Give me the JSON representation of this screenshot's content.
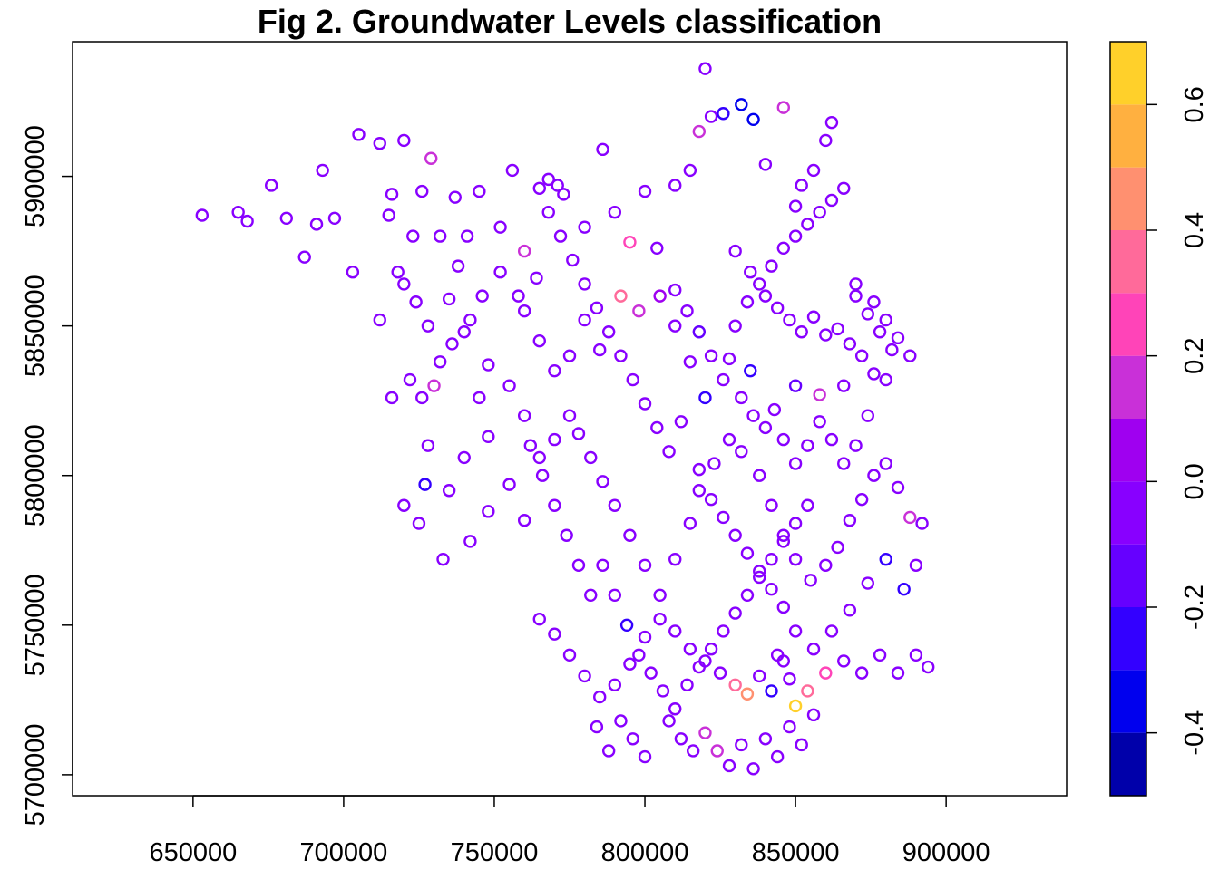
{
  "chart_data": {
    "type": "scatter",
    "title": "Fig 2.  Groundwater Levels classification",
    "xlabel": "",
    "ylabel": "",
    "xlim": [
      610000,
      940000
    ],
    "ylim": [
      5693000,
      5945000
    ],
    "x_ticks": [
      650000,
      700000,
      750000,
      800000,
      850000,
      900000
    ],
    "x_tick_labels": [
      "650000",
      "700000",
      "750000",
      "800000",
      "850000",
      "900000"
    ],
    "y_ticks": [
      5700000,
      5750000,
      5800000,
      5850000,
      5900000
    ],
    "y_tick_labels": [
      "5700000",
      "5750000",
      "5800000",
      "5850000",
      "5900000"
    ],
    "marker": "open-circle",
    "grid": false,
    "legend": "colorbar-right",
    "colorbar": {
      "range": [
        -0.5,
        0.7
      ],
      "breaks": [
        -0.5,
        -0.4,
        -0.3,
        -0.2,
        -0.1,
        0.0,
        0.1,
        0.2,
        0.3,
        0.4,
        0.5,
        0.6,
        0.7
      ],
      "colors": [
        "#0000aa",
        "#0000ee",
        "#3300ff",
        "#6600ff",
        "#8800ff",
        "#9f00f0",
        "#c930d8",
        "#ff44b8",
        "#ff6a9a",
        "#ff9070",
        "#ffb040",
        "#ffd02a",
        "#ffff10"
      ],
      "ticks": [
        -0.4,
        -0.2,
        0.0,
        0.2,
        0.4,
        0.6
      ],
      "tick_labels": [
        "-0.4",
        "-0.2",
        "0.0",
        "0.2",
        "0.4",
        "0.6"
      ]
    },
    "points": [
      [
        653000,
        5887000,
        -0.05
      ],
      [
        665000,
        5888000,
        -0.05
      ],
      [
        668000,
        5885000,
        -0.05
      ],
      [
        676000,
        5897000,
        -0.05
      ],
      [
        681000,
        5886000,
        -0.05
      ],
      [
        687000,
        5873000,
        -0.05
      ],
      [
        693000,
        5902000,
        -0.05
      ],
      [
        691000,
        5884000,
        -0.05
      ],
      [
        697000,
        5886000,
        -0.05
      ],
      [
        703000,
        5868000,
        -0.05
      ],
      [
        705000,
        5914000,
        -0.05
      ],
      [
        712000,
        5911000,
        -0.05
      ],
      [
        715000,
        5887000,
        -0.05
      ],
      [
        716000,
        5894000,
        -0.05
      ],
      [
        723000,
        5880000,
        -0.05
      ],
      [
        720000,
        5912000,
        -0.05
      ],
      [
        726000,
        5895000,
        -0.05
      ],
      [
        729000,
        5906000,
        0.1
      ],
      [
        732000,
        5880000,
        -0.05
      ],
      [
        737000,
        5893000,
        -0.05
      ],
      [
        741000,
        5880000,
        -0.05
      ],
      [
        745000,
        5895000,
        -0.05
      ],
      [
        752000,
        5883000,
        -0.05
      ],
      [
        756000,
        5902000,
        -0.05
      ],
      [
        760000,
        5875000,
        0.15
      ],
      [
        765000,
        5896000,
        -0.05
      ],
      [
        768000,
        5899000,
        -0.05
      ],
      [
        771000,
        5897000,
        -0.05
      ],
      [
        773000,
        5894000,
        -0.05
      ],
      [
        780000,
        5883000,
        -0.05
      ],
      [
        786000,
        5909000,
        -0.05
      ],
      [
        790000,
        5888000,
        -0.05
      ],
      [
        795000,
        5878000,
        0.2
      ],
      [
        800000,
        5895000,
        -0.05
      ],
      [
        804000,
        5876000,
        -0.05
      ],
      [
        810000,
        5897000,
        -0.05
      ],
      [
        815000,
        5902000,
        -0.05
      ],
      [
        818000,
        5915000,
        0.15
      ],
      [
        820000,
        5936000,
        -0.05
      ],
      [
        822000,
        5920000,
        -0.05
      ],
      [
        826000,
        5921000,
        -0.25
      ],
      [
        832000,
        5924000,
        -0.35
      ],
      [
        836000,
        5919000,
        -0.35
      ],
      [
        840000,
        5904000,
        -0.05
      ],
      [
        846000,
        5923000,
        0.15
      ],
      [
        850000,
        5890000,
        -0.05
      ],
      [
        852000,
        5897000,
        -0.05
      ],
      [
        856000,
        5902000,
        -0.05
      ],
      [
        860000,
        5912000,
        -0.05
      ],
      [
        862000,
        5918000,
        -0.05
      ],
      [
        830000,
        5875000,
        -0.05
      ],
      [
        835000,
        5868000,
        -0.05
      ],
      [
        840000,
        5860000,
        -0.05
      ],
      [
        844000,
        5856000,
        -0.05
      ],
      [
        848000,
        5852000,
        -0.05
      ],
      [
        852000,
        5848000,
        -0.05
      ],
      [
        856000,
        5853000,
        -0.05
      ],
      [
        860000,
        5847000,
        -0.05
      ],
      [
        864000,
        5849000,
        -0.05
      ],
      [
        868000,
        5844000,
        -0.05
      ],
      [
        872000,
        5840000,
        -0.05
      ],
      [
        876000,
        5834000,
        -0.05
      ],
      [
        880000,
        5832000,
        -0.05
      ],
      [
        866000,
        5830000,
        -0.05
      ],
      [
        858000,
        5827000,
        0.15
      ],
      [
        850000,
        5830000,
        -0.2
      ],
      [
        843000,
        5822000,
        -0.05
      ],
      [
        835000,
        5835000,
        -0.25
      ],
      [
        828000,
        5839000,
        -0.05
      ],
      [
        820000,
        5826000,
        -0.25
      ],
      [
        815000,
        5838000,
        -0.05
      ],
      [
        810000,
        5850000,
        -0.05
      ],
      [
        805000,
        5860000,
        0.05
      ],
      [
        798000,
        5855000,
        0.1
      ],
      [
        792000,
        5860000,
        0.3
      ],
      [
        785000,
        5842000,
        -0.05
      ],
      [
        780000,
        5852000,
        -0.05
      ],
      [
        775000,
        5840000,
        -0.05
      ],
      [
        770000,
        5835000,
        -0.05
      ],
      [
        765000,
        5845000,
        -0.05
      ],
      [
        760000,
        5855000,
        -0.05
      ],
      [
        755000,
        5830000,
        -0.05
      ],
      [
        748000,
        5837000,
        -0.05
      ],
      [
        745000,
        5826000,
        -0.05
      ],
      [
        740000,
        5848000,
        -0.05
      ],
      [
        735000,
        5859000,
        -0.05
      ],
      [
        730000,
        5830000,
        0.15
      ],
      [
        726000,
        5826000,
        -0.05
      ],
      [
        722000,
        5832000,
        -0.05
      ],
      [
        716000,
        5826000,
        -0.05
      ],
      [
        712000,
        5852000,
        -0.05
      ],
      [
        718000,
        5868000,
        -0.05
      ],
      [
        738000,
        5870000,
        -0.05
      ],
      [
        748000,
        5813000,
        -0.05
      ],
      [
        740000,
        5806000,
        -0.05
      ],
      [
        735000,
        5795000,
        -0.05
      ],
      [
        728000,
        5810000,
        -0.05
      ],
      [
        725000,
        5784000,
        -0.05
      ],
      [
        720000,
        5790000,
        -0.05
      ],
      [
        727000,
        5797000,
        -0.25
      ],
      [
        733000,
        5772000,
        -0.05
      ],
      [
        742000,
        5778000,
        -0.05
      ],
      [
        748000,
        5788000,
        -0.05
      ],
      [
        755000,
        5797000,
        -0.05
      ],
      [
        760000,
        5785000,
        -0.05
      ],
      [
        765000,
        5806000,
        -0.05
      ],
      [
        770000,
        5812000,
        -0.05
      ],
      [
        775000,
        5820000,
        -0.05
      ],
      [
        778000,
        5814000,
        -0.05
      ],
      [
        782000,
        5806000,
        -0.05
      ],
      [
        786000,
        5798000,
        -0.05
      ],
      [
        790000,
        5790000,
        -0.05
      ],
      [
        795000,
        5780000,
        -0.05
      ],
      [
        800000,
        5770000,
        -0.05
      ],
      [
        805000,
        5760000,
        -0.05
      ],
      [
        810000,
        5772000,
        -0.05
      ],
      [
        815000,
        5784000,
        -0.05
      ],
      [
        818000,
        5795000,
        -0.05
      ],
      [
        823000,
        5804000,
        -0.05
      ],
      [
        828000,
        5812000,
        -0.05
      ],
      [
        832000,
        5808000,
        -0.05
      ],
      [
        838000,
        5800000,
        -0.05
      ],
      [
        842000,
        5790000,
        -0.05
      ],
      [
        846000,
        5780000,
        -0.05
      ],
      [
        850000,
        5772000,
        -0.05
      ],
      [
        855000,
        5765000,
        -0.05
      ],
      [
        860000,
        5770000,
        -0.05
      ],
      [
        864000,
        5776000,
        -0.05
      ],
      [
        868000,
        5785000,
        -0.05
      ],
      [
        872000,
        5792000,
        -0.05
      ],
      [
        876000,
        5800000,
        -0.05
      ],
      [
        880000,
        5804000,
        -0.05
      ],
      [
        884000,
        5796000,
        -0.05
      ],
      [
        888000,
        5786000,
        0.15
      ],
      [
        892000,
        5784000,
        -0.05
      ],
      [
        890000,
        5770000,
        -0.05
      ],
      [
        886000,
        5762000,
        -0.25
      ],
      [
        880000,
        5772000,
        -0.25
      ],
      [
        874000,
        5764000,
        -0.05
      ],
      [
        868000,
        5755000,
        -0.05
      ],
      [
        862000,
        5748000,
        -0.05
      ],
      [
        856000,
        5742000,
        -0.05
      ],
      [
        850000,
        5748000,
        -0.05
      ],
      [
        844000,
        5740000,
        -0.05
      ],
      [
        838000,
        5733000,
        -0.05
      ],
      [
        834000,
        5727000,
        0.45
      ],
      [
        830000,
        5730000,
        0.3
      ],
      [
        825000,
        5734000,
        -0.05
      ],
      [
        820000,
        5738000,
        -0.05
      ],
      [
        815000,
        5742000,
        -0.05
      ],
      [
        810000,
        5748000,
        -0.05
      ],
      [
        805000,
        5752000,
        -0.05
      ],
      [
        800000,
        5746000,
        -0.05
      ],
      [
        795000,
        5737000,
        -0.05
      ],
      [
        790000,
        5730000,
        -0.05
      ],
      [
        785000,
        5726000,
        -0.05
      ],
      [
        780000,
        5733000,
        -0.05
      ],
      [
        775000,
        5740000,
        -0.05
      ],
      [
        770000,
        5747000,
        -0.05
      ],
      [
        765000,
        5752000,
        -0.05
      ],
      [
        808000,
        5718000,
        -0.05
      ],
      [
        812000,
        5712000,
        -0.05
      ],
      [
        816000,
        5708000,
        -0.05
      ],
      [
        820000,
        5714000,
        0.15
      ],
      [
        824000,
        5708000,
        0.15
      ],
      [
        828000,
        5703000,
        -0.05
      ],
      [
        832000,
        5710000,
        -0.05
      ],
      [
        836000,
        5702000,
        -0.05
      ],
      [
        840000,
        5712000,
        -0.05
      ],
      [
        844000,
        5706000,
        -0.05
      ],
      [
        848000,
        5716000,
        -0.05
      ],
      [
        852000,
        5710000,
        -0.05
      ],
      [
        856000,
        5720000,
        -0.05
      ],
      [
        850000,
        5723000,
        0.6
      ],
      [
        854000,
        5728000,
        0.3
      ],
      [
        848000,
        5732000,
        -0.05
      ],
      [
        842000,
        5728000,
        -0.25
      ],
      [
        846000,
        5738000,
        -0.05
      ],
      [
        860000,
        5734000,
        0.2
      ],
      [
        866000,
        5738000,
        -0.05
      ],
      [
        872000,
        5734000,
        -0.05
      ],
      [
        878000,
        5740000,
        -0.05
      ],
      [
        884000,
        5734000,
        -0.05
      ],
      [
        890000,
        5740000,
        -0.05
      ],
      [
        894000,
        5736000,
        -0.05
      ],
      [
        800000,
        5706000,
        -0.05
      ],
      [
        796000,
        5712000,
        -0.05
      ],
      [
        792000,
        5718000,
        -0.05
      ],
      [
        788000,
        5708000,
        -0.05
      ],
      [
        784000,
        5716000,
        -0.05
      ],
      [
        818000,
        5802000,
        -0.05
      ],
      [
        822000,
        5792000,
        -0.05
      ],
      [
        826000,
        5786000,
        -0.05
      ],
      [
        830000,
        5780000,
        -0.05
      ],
      [
        834000,
        5774000,
        -0.05
      ],
      [
        838000,
        5768000,
        -0.05
      ],
      [
        842000,
        5762000,
        -0.05
      ],
      [
        846000,
        5756000,
        -0.05
      ],
      [
        812000,
        5818000,
        -0.05
      ],
      [
        808000,
        5808000,
        -0.05
      ],
      [
        804000,
        5816000,
        -0.05
      ],
      [
        800000,
        5824000,
        -0.05
      ],
      [
        796000,
        5832000,
        -0.05
      ],
      [
        792000,
        5840000,
        -0.05
      ],
      [
        788000,
        5848000,
        -0.05
      ],
      [
        784000,
        5856000,
        -0.05
      ],
      [
        780000,
        5864000,
        -0.05
      ],
      [
        776000,
        5872000,
        -0.05
      ],
      [
        772000,
        5880000,
        -0.05
      ],
      [
        768000,
        5888000,
        -0.05
      ],
      [
        764000,
        5866000,
        -0.05
      ],
      [
        758000,
        5860000,
        -0.05
      ],
      [
        752000,
        5868000,
        -0.05
      ],
      [
        746000,
        5860000,
        -0.05
      ],
      [
        742000,
        5852000,
        -0.05
      ],
      [
        736000,
        5844000,
        -0.05
      ],
      [
        732000,
        5838000,
        -0.05
      ],
      [
        728000,
        5850000,
        -0.05
      ],
      [
        724000,
        5858000,
        -0.05
      ],
      [
        720000,
        5864000,
        -0.05
      ],
      [
        870000,
        5860000,
        -0.05
      ],
      [
        874000,
        5854000,
        -0.05
      ],
      [
        878000,
        5848000,
        -0.05
      ],
      [
        882000,
        5842000,
        -0.05
      ],
      [
        874000,
        5820000,
        -0.05
      ],
      [
        870000,
        5810000,
        -0.05
      ],
      [
        866000,
        5804000,
        -0.05
      ],
      [
        862000,
        5812000,
        -0.05
      ],
      [
        858000,
        5818000,
        -0.05
      ],
      [
        854000,
        5810000,
        -0.05
      ],
      [
        850000,
        5804000,
        -0.05
      ],
      [
        846000,
        5812000,
        -0.05
      ],
      [
        840000,
        5816000,
        -0.05
      ],
      [
        836000,
        5820000,
        -0.05
      ],
      [
        832000,
        5826000,
        -0.05
      ],
      [
        826000,
        5832000,
        -0.05
      ],
      [
        822000,
        5840000,
        -0.05
      ],
      [
        818000,
        5848000,
        -0.2
      ],
      [
        814000,
        5855000,
        -0.05
      ],
      [
        810000,
        5862000,
        -0.05
      ],
      [
        830000,
        5850000,
        -0.05
      ],
      [
        834000,
        5858000,
        -0.05
      ],
      [
        838000,
        5864000,
        -0.05
      ],
      [
        842000,
        5870000,
        -0.05
      ],
      [
        846000,
        5876000,
        -0.05
      ],
      [
        850000,
        5880000,
        -0.05
      ],
      [
        854000,
        5884000,
        -0.05
      ],
      [
        858000,
        5888000,
        -0.05
      ],
      [
        862000,
        5892000,
        -0.05
      ],
      [
        866000,
        5896000,
        -0.05
      ],
      [
        870000,
        5864000,
        -0.05
      ],
      [
        876000,
        5858000,
        -0.05
      ],
      [
        880000,
        5852000,
        -0.05
      ],
      [
        884000,
        5846000,
        -0.05
      ],
      [
        888000,
        5840000,
        -0.05
      ],
      [
        760000,
        5820000,
        -0.05
      ],
      [
        762000,
        5810000,
        -0.05
      ],
      [
        766000,
        5800000,
        -0.05
      ],
      [
        770000,
        5790000,
        -0.05
      ],
      [
        774000,
        5780000,
        -0.05
      ],
      [
        778000,
        5770000,
        -0.05
      ],
      [
        782000,
        5760000,
        -0.05
      ],
      [
        786000,
        5770000,
        -0.05
      ],
      [
        790000,
        5760000,
        -0.05
      ],
      [
        794000,
        5750000,
        -0.25
      ],
      [
        798000,
        5740000,
        -0.05
      ],
      [
        802000,
        5734000,
        -0.05
      ],
      [
        806000,
        5728000,
        -0.05
      ],
      [
        810000,
        5722000,
        -0.05
      ],
      [
        814000,
        5730000,
        -0.05
      ],
      [
        818000,
        5736000,
        -0.05
      ],
      [
        822000,
        5742000,
        -0.05
      ],
      [
        826000,
        5748000,
        -0.05
      ],
      [
        830000,
        5754000,
        -0.05
      ],
      [
        834000,
        5760000,
        -0.05
      ],
      [
        838000,
        5766000,
        -0.05
      ],
      [
        842000,
        5772000,
        -0.05
      ],
      [
        846000,
        5778000,
        -0.05
      ],
      [
        850000,
        5784000,
        -0.05
      ],
      [
        854000,
        5790000,
        -0.05
      ]
    ]
  }
}
